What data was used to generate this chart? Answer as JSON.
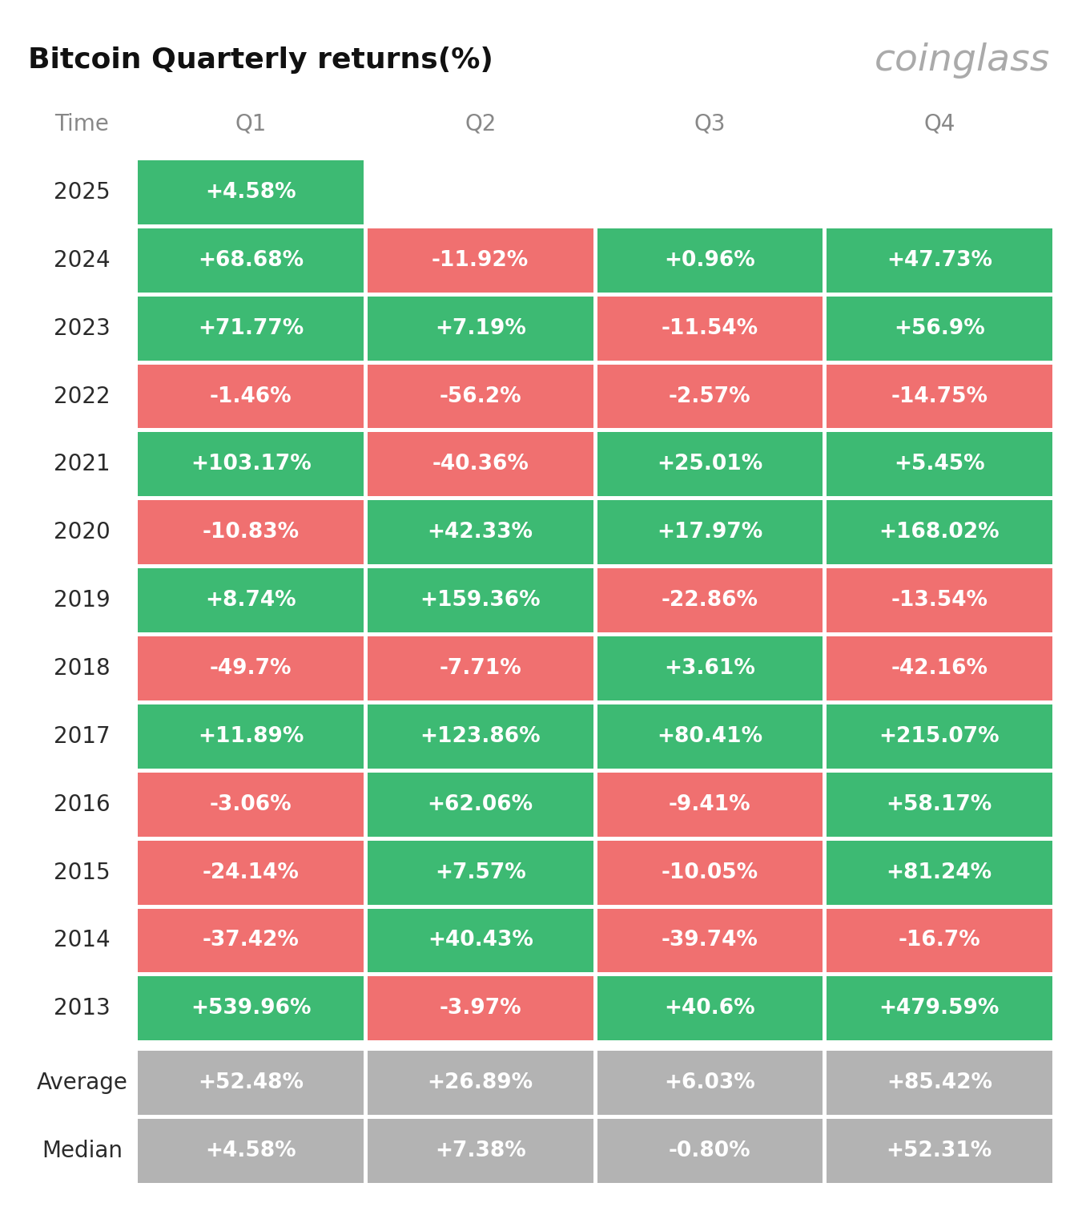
{
  "title": "Bitcoin Quarterly returns(%)",
  "watermark": "coinglass",
  "headers": [
    "Time",
    "Q1",
    "Q2",
    "Q3",
    "Q4"
  ],
  "rows": [
    {
      "year": "2025",
      "values": [
        "+4.58%",
        null,
        null,
        null
      ]
    },
    {
      "year": "2024",
      "values": [
        "+68.68%",
        "-11.92%",
        "+0.96%",
        "+47.73%"
      ]
    },
    {
      "year": "2023",
      "values": [
        "+71.77%",
        "+7.19%",
        "-11.54%",
        "+56.9%"
      ]
    },
    {
      "year": "2022",
      "values": [
        "-1.46%",
        "-56.2%",
        "-2.57%",
        "-14.75%"
      ]
    },
    {
      "year": "2021",
      "values": [
        "+103.17%",
        "-40.36%",
        "+25.01%",
        "+5.45%"
      ]
    },
    {
      "year": "2020",
      "values": [
        "-10.83%",
        "+42.33%",
        "+17.97%",
        "+168.02%"
      ]
    },
    {
      "year": "2019",
      "values": [
        "+8.74%",
        "+159.36%",
        "-22.86%",
        "-13.54%"
      ]
    },
    {
      "year": "2018",
      "values": [
        "-49.7%",
        "-7.71%",
        "+3.61%",
        "-42.16%"
      ]
    },
    {
      "year": "2017",
      "values": [
        "+11.89%",
        "+123.86%",
        "+80.41%",
        "+215.07%"
      ]
    },
    {
      "year": "2016",
      "values": [
        "-3.06%",
        "+62.06%",
        "-9.41%",
        "+58.17%"
      ]
    },
    {
      "year": "2015",
      "values": [
        "-24.14%",
        "+7.57%",
        "-10.05%",
        "+81.24%"
      ]
    },
    {
      "year": "2014",
      "values": [
        "-37.42%",
        "+40.43%",
        "-39.74%",
        "-16.7%"
      ]
    },
    {
      "year": "2013",
      "values": [
        "+539.96%",
        "-3.97%",
        "+40.6%",
        "+479.59%"
      ]
    }
  ],
  "summary_rows": [
    {
      "label": "Average",
      "values": [
        "+52.48%",
        "+26.89%",
        "+6.03%",
        "+85.42%"
      ]
    },
    {
      "label": "Median",
      "values": [
        "+4.58%",
        "+7.38%",
        "-0.80%",
        "+52.31%"
      ]
    }
  ],
  "green_color": "#3dba73",
  "red_color": "#f07070",
  "gray_color": "#b3b3b3",
  "bg_color": "#ffffff",
  "cell_text_color": "#ffffff",
  "year_text_color": "#2a2a2a",
  "header_text_color": "#888888",
  "title_color": "#111111",
  "watermark_color": "#aaaaaa",
  "title_fontsize": 26,
  "watermark_fontsize": 34,
  "header_fontsize": 20,
  "year_fontsize": 20,
  "cell_fontsize": 19,
  "summary_label_fontsize": 20
}
